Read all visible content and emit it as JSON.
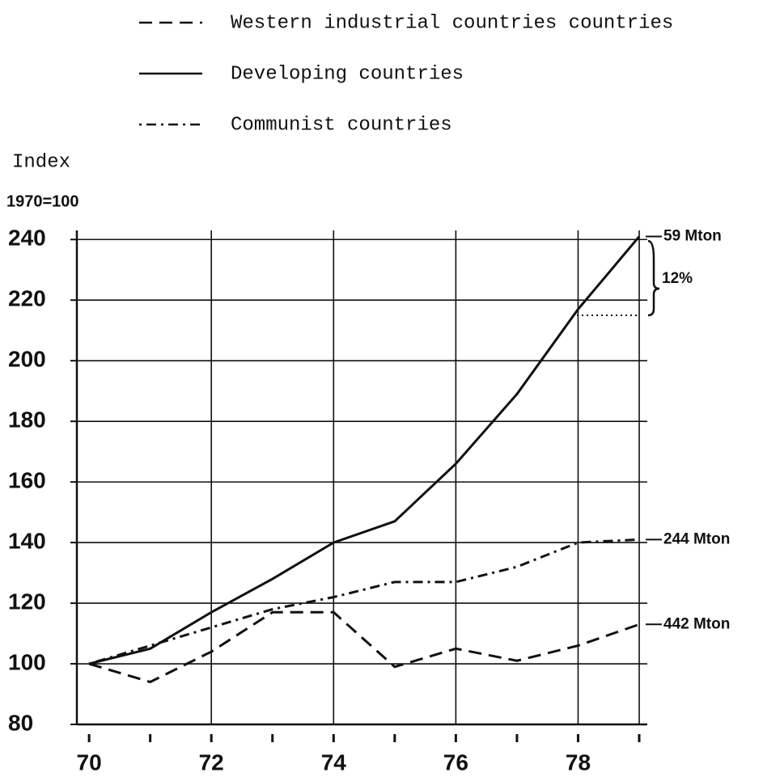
{
  "chart_data": {
    "type": "line",
    "y_axis_label": "Index",
    "y_axis_sublabel": "1970=100",
    "x": [
      70,
      71,
      72,
      73,
      74,
      75,
      76,
      77,
      78,
      79
    ],
    "xlim": [
      69.8,
      79
    ],
    "xticks": [
      70,
      72,
      74,
      76,
      78
    ],
    "ylim": [
      80,
      243
    ],
    "yticks": [
      80,
      100,
      120,
      140,
      160,
      180,
      200,
      220,
      240
    ],
    "grid": true,
    "series": [
      {
        "name": "Western industrial countries countries",
        "style": "dashed",
        "color": "#111111",
        "values": [
          100,
          94,
          104,
          117,
          117,
          99,
          105,
          101,
          106,
          113
        ],
        "end_label": "442 Mton"
      },
      {
        "name": "Developing countries",
        "style": "solid",
        "color": "#111111",
        "values": [
          100,
          105,
          117,
          128,
          140,
          147,
          166,
          189,
          217,
          241
        ],
        "end_label": "59 Mton"
      },
      {
        "name": "Communist countries",
        "style": "dashdot",
        "color": "#111111",
        "values": [
          100,
          106,
          112,
          118,
          122,
          127,
          127,
          132,
          140,
          141
        ],
        "end_label": "244 Mton"
      }
    ],
    "annotation": "12%"
  }
}
